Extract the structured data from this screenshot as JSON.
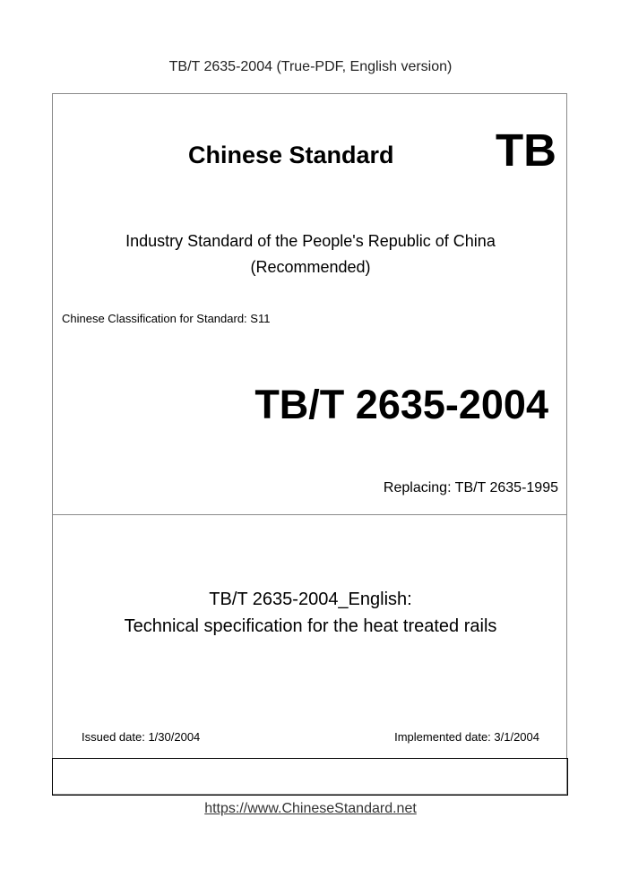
{
  "header": {
    "title": "TB/T 2635-2004 (True-PDF, English version)"
  },
  "cover": {
    "heading": "Chinese Standard",
    "code_prefix": "TB",
    "industry_line1": "Industry Standard of the People's Republic of China",
    "industry_line2": "(Recommended)",
    "classification": "Chinese Classification for Standard: S11",
    "standard_number": "TB/T 2635-2004",
    "replacing": "Replacing: TB/T 2635-1995",
    "title_line1": "TB/T 2635-2004_English:",
    "title_line2": "Technical specification for the heat treated rails",
    "issued_date": "Issued date: 1/30/2004",
    "implemented_date": "Implemented date: 3/1/2004"
  },
  "footer": {
    "url": "https://www.ChineseStandard.net"
  }
}
